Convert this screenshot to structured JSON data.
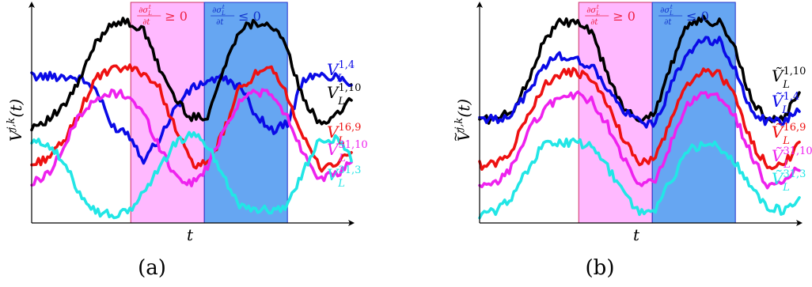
{
  "figure": {
    "panels": [
      {
        "id": "a",
        "caption": "(a)",
        "xlabel": "t",
        "ylabel": "V^{j,k}(t)",
        "ylabel_text": {
          "base": "V",
          "sup": "j,k",
          "arg": "(t)"
        },
        "tilde_symbol": false,
        "regions": [
          {
            "label_text": "∂σ_L^t/∂t ≥ 0",
            "frac_num": "∂σ",
            "frac_num_sup": "t",
            "frac_num_sub": "L",
            "frac_den": "∂t",
            "rel": "≥ 0",
            "fill": "#ff80ff",
            "stroke": "#cc3366",
            "text_color": "#ee2244"
          },
          {
            "label_text": "∂σ_L^t/∂t ≤ 0",
            "frac_num": "∂σ",
            "frac_num_sup": "t",
            "frac_num_sub": "L",
            "frac_den": "∂t",
            "rel": "≤ 0",
            "fill": "#3388ee",
            "stroke": "#2233cc",
            "text_color": "#1133cc"
          }
        ],
        "series_labels": [
          {
            "base": "V",
            "sub": "L",
            "sup": "1,4",
            "color": "#0a0ae6"
          },
          {
            "base": "V",
            "sub": "L",
            "sup": "1,10",
            "color": "#000000"
          },
          {
            "base": "V",
            "sub": "L",
            "sup": "16,9",
            "color": "#ee1111"
          },
          {
            "base": "V",
            "sub": "L",
            "sup": "31,10",
            "color": "#ee22ee"
          },
          {
            "base": "V",
            "sub": "L",
            "sup": "31,3",
            "color": "#22e6e6"
          }
        ]
      },
      {
        "id": "b",
        "caption": "(b)",
        "xlabel": "t",
        "ylabel": "Ṽ^{j,k}(t)",
        "ylabel_text": {
          "base": "V",
          "sup": "j,k",
          "arg": "(t)"
        },
        "tilde_symbol": true,
        "regions": [
          {
            "label_text": "∂σ_L^t/∂t ≥ 0",
            "frac_num": "∂σ",
            "frac_num_sup": "t",
            "frac_num_sub": "L",
            "frac_den": "∂t",
            "rel": "≥ 0",
            "fill": "#ff80ff",
            "stroke": "#cc3366",
            "text_color": "#ee2244"
          },
          {
            "label_text": "∂σ_L^t/∂t ≤ 0",
            "frac_num": "∂σ",
            "frac_num_sup": "t",
            "frac_num_sub": "L",
            "frac_den": "∂t",
            "rel": "≤ 0",
            "fill": "#3388ee",
            "stroke": "#2233cc",
            "text_color": "#1133cc"
          }
        ],
        "series_labels": [
          {
            "base": "Ṽ",
            "sub": "L",
            "sup": "1,10",
            "color": "#000000"
          },
          {
            "base": "Ṽ",
            "sub": "L",
            "sup": "1,4",
            "color": "#0a0ae6"
          },
          {
            "base": "Ṽ",
            "sub": "L",
            "sup": "16,9",
            "color": "#ee1111"
          },
          {
            "base": "Ṽ",
            "sub": "L",
            "sup": "31,10",
            "color": "#ee22ee"
          },
          {
            "base": "Ṽ",
            "sub": "L",
            "sup": "31,3",
            "color": "#22e6e6"
          }
        ]
      }
    ]
  },
  "chart_data": [
    {
      "type": "line",
      "title": "",
      "xlabel": "t",
      "ylabel": "V^{j,k}(t)",
      "x_ticks": "none",
      "y_ticks": "none",
      "grid": false,
      "xlim": [
        0,
        100
      ],
      "ylim": [
        0,
        100
      ],
      "shaded_regions": [
        {
          "x_start": 31,
          "x_end": 54,
          "label": "∂σ_L^t/∂t ≥ 0"
        },
        {
          "x_start": 54,
          "x_end": 80,
          "label": "∂σ_L^t/∂t ≤ 0"
        }
      ],
      "x": [
        0,
        5,
        10,
        15,
        20,
        25,
        30,
        35,
        40,
        45,
        50,
        55,
        60,
        65,
        70,
        75,
        80,
        85,
        90,
        95,
        100
      ],
      "series": [
        {
          "name": "V_L^{1,4}",
          "color": "#0a0ae6",
          "values": [
            70,
            70,
            70,
            69,
            64,
            46,
            43,
            30,
            40,
            55,
            64,
            68,
            69,
            65,
            52,
            44,
            47,
            69,
            70,
            70,
            67
          ]
        },
        {
          "name": "V_L^{1,10}",
          "color": "#000000",
          "values": [
            46,
            49,
            55,
            68,
            86,
            96,
            96,
            92,
            74,
            59,
            50,
            51,
            73,
            93,
            96,
            95,
            83,
            58,
            48,
            50,
            60
          ]
        },
        {
          "name": "V_L^{16,9}",
          "color": "#ee1111",
          "values": [
            27,
            31,
            38,
            53,
            69,
            73,
            74,
            72,
            64,
            45,
            28,
            27,
            43,
            64,
            71,
            73,
            61,
            40,
            26,
            28,
            33
          ]
        },
        {
          "name": "V_L^{31,10}",
          "color": "#ee22ee",
          "values": [
            18,
            23,
            35,
            52,
            58,
            62,
            61,
            52,
            36,
            22,
            18,
            26,
            44,
            58,
            63,
            61,
            50,
            33,
            21,
            22,
            28
          ]
        },
        {
          "name": "V_L^{31,3}",
          "color": "#22e6e6",
          "values": [
            38,
            38,
            28,
            14,
            5,
            3,
            4,
            14,
            26,
            38,
            42,
            37,
            22,
            8,
            6,
            5,
            8,
            24,
            40,
            40,
            31
          ]
        }
      ]
    },
    {
      "type": "line",
      "title": "",
      "xlabel": "t",
      "ylabel": "Ṽ^{j,k}(t)",
      "x_ticks": "none",
      "y_ticks": "none",
      "grid": false,
      "xlim": [
        0,
        100
      ],
      "ylim": [
        0,
        100
      ],
      "shaded_regions": [
        {
          "x_start": 31,
          "x_end": 54,
          "label": "∂σ_L^t/∂t ≥ 0"
        },
        {
          "x_start": 54,
          "x_end": 80,
          "label": "∂σ_L^t/∂t ≤ 0"
        }
      ],
      "x": [
        0,
        5,
        10,
        15,
        20,
        25,
        30,
        35,
        40,
        45,
        50,
        55,
        60,
        65,
        70,
        75,
        80,
        85,
        90,
        95,
        100
      ],
      "series": [
        {
          "name": "Ṽ_L^{1,10}",
          "color": "#000000",
          "values": [
            50,
            49,
            53,
            67,
            87,
            96,
            96,
            91,
            71,
            54,
            49,
            53,
            76,
            95,
            97,
            96,
            83,
            58,
            49,
            50,
            62
          ]
        },
        {
          "name": "Ṽ_L^{1,4}",
          "color": "#0a0ae6",
          "values": [
            50,
            49,
            52,
            62,
            75,
            80,
            78,
            75,
            64,
            53,
            48,
            47,
            66,
            82,
            87,
            87,
            73,
            53,
            48,
            48,
            55
          ]
        },
        {
          "name": "Ṽ_L^{16,9}",
          "color": "#ee1111",
          "values": [
            27,
            28,
            34,
            52,
            65,
            71,
            72,
            69,
            56,
            40,
            28,
            30,
            50,
            66,
            73,
            71,
            60,
            38,
            27,
            27,
            37
          ]
        },
        {
          "name": "Ṽ_L^{31,10}",
          "color": "#ee22ee",
          "values": [
            16,
            18,
            26,
            43,
            54,
            60,
            61,
            58,
            47,
            30,
            17,
            20,
            38,
            56,
            61,
            60,
            50,
            32,
            17,
            18,
            26
          ]
        },
        {
          "name": "Ṽ_L^{31,3}",
          "color": "#22e6e6",
          "values": [
            3,
            5,
            12,
            25,
            37,
            38,
            38,
            36,
            26,
            14,
            4,
            6,
            20,
            34,
            37,
            36,
            28,
            17,
            7,
            5,
            12
          ]
        }
      ]
    }
  ]
}
